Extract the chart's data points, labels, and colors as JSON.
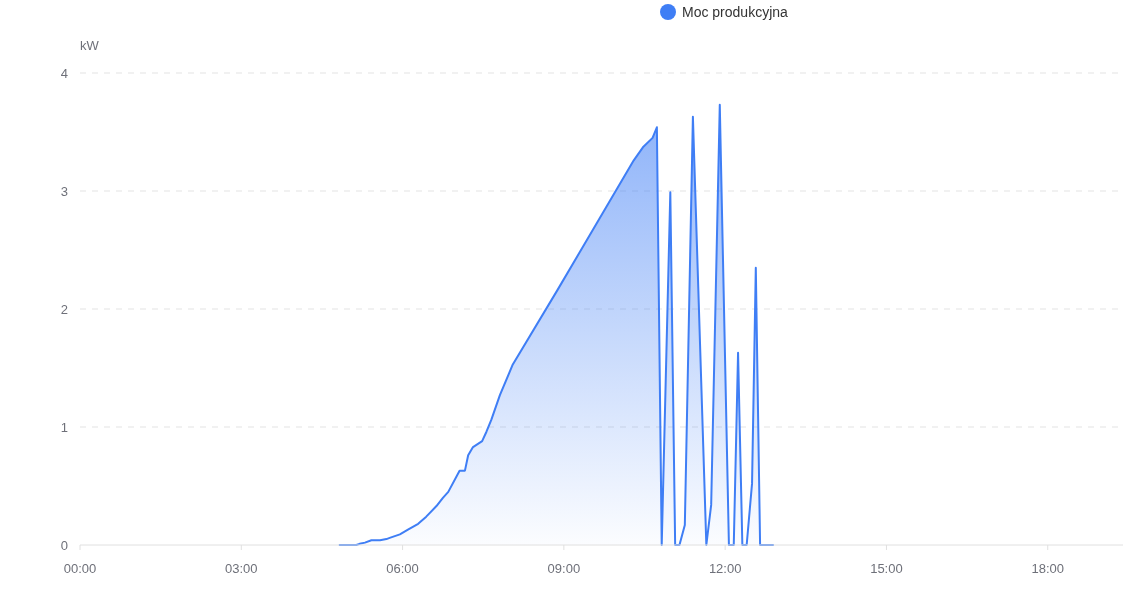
{
  "chart_data": {
    "type": "area",
    "ylabel": "kW",
    "x": [
      4.83,
      5.14,
      5.2,
      5.3,
      5.42,
      5.58,
      5.7,
      5.76,
      5.95,
      6.1,
      6.29,
      6.44,
      6.63,
      6.75,
      6.85,
      7.06,
      7.16,
      7.22,
      7.31,
      7.48,
      7.56,
      7.65,
      7.81,
      8.05,
      8.88,
      10.3,
      10.47,
      10.65,
      10.73,
      10.82,
      10.98,
      11.07,
      11.15,
      11.25,
      11.4,
      11.65,
      11.74,
      11.9,
      12.07,
      12.16,
      12.24,
      12.32,
      12.4,
      12.5,
      12.57,
      12.65,
      12.89
    ],
    "series": [
      {
        "name": "Moc produkcyjna",
        "color": "#3f7ef5",
        "values": [
          0,
          0,
          0.01,
          0.02,
          0.04,
          0.04,
          0.05,
          0.06,
          0.09,
          0.13,
          0.18,
          0.24,
          0.33,
          0.4,
          0.45,
          0.63,
          0.63,
          0.76,
          0.83,
          0.88,
          0.96,
          1.06,
          1.27,
          1.53,
          2.16,
          3.26,
          3.37,
          3.45,
          3.54,
          0,
          2.99,
          0,
          0,
          0.17,
          3.63,
          0,
          0.34,
          3.73,
          0,
          0,
          1.63,
          0,
          0,
          0.52,
          2.35,
          0,
          0
        ]
      }
    ],
    "xlim": [
      0,
      19.4
    ],
    "ylim": [
      0,
      4
    ],
    "xticks": [
      {
        "value": 0,
        "label": "00:00"
      },
      {
        "value": 3,
        "label": "03:00"
      },
      {
        "value": 6,
        "label": "06:00"
      },
      {
        "value": 9,
        "label": "09:00"
      },
      {
        "value": 12,
        "label": "12:00"
      },
      {
        "value": 15,
        "label": "15:00"
      },
      {
        "value": 18,
        "label": "18:00"
      }
    ],
    "yticks": [
      0,
      1,
      2,
      3,
      4
    ],
    "grid": "y",
    "legend": "top"
  }
}
